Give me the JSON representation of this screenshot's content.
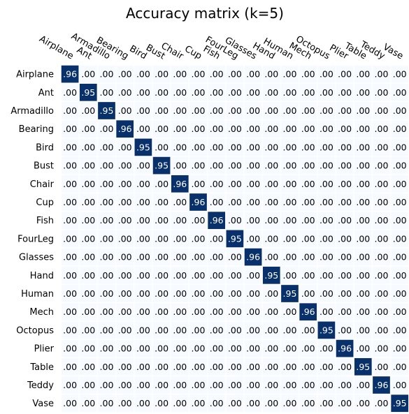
{
  "chart_data": {
    "type": "heatmap",
    "title": "Accuracy matrix (k=5)",
    "xlabel": "",
    "ylabel": "",
    "x_tick_position": "top",
    "x_tick_rotation_deg": -30,
    "colormap": "Blues",
    "cell_gap_color": "#ffffff",
    "text_color_low": "#000000",
    "text_color_high": "#ffffff",
    "high_cell_color": "#08306b",
    "low_cell_color": "#f7fbff",
    "grid": false,
    "categories": [
      "Airplane",
      "Ant",
      "Armadillo",
      "Bearing",
      "Bird",
      "Bust",
      "Chair",
      "Cup",
      "Fish",
      "FourLeg",
      "Glasses",
      "Hand",
      "Human",
      "Mech",
      "Octopus",
      "Plier",
      "Table",
      "Teddy",
      "Vase"
    ],
    "diagonal_values": [
      0.96,
      0.95,
      0.95,
      0.96,
      0.95,
      0.95,
      0.96,
      0.96,
      0.96,
      0.95,
      0.96,
      0.95,
      0.95,
      0.96,
      0.95,
      0.96,
      0.95,
      0.96,
      0.95
    ],
    "off_diagonal_value": 0.0,
    "value_format": "strip-leading-zero-2dp"
  }
}
